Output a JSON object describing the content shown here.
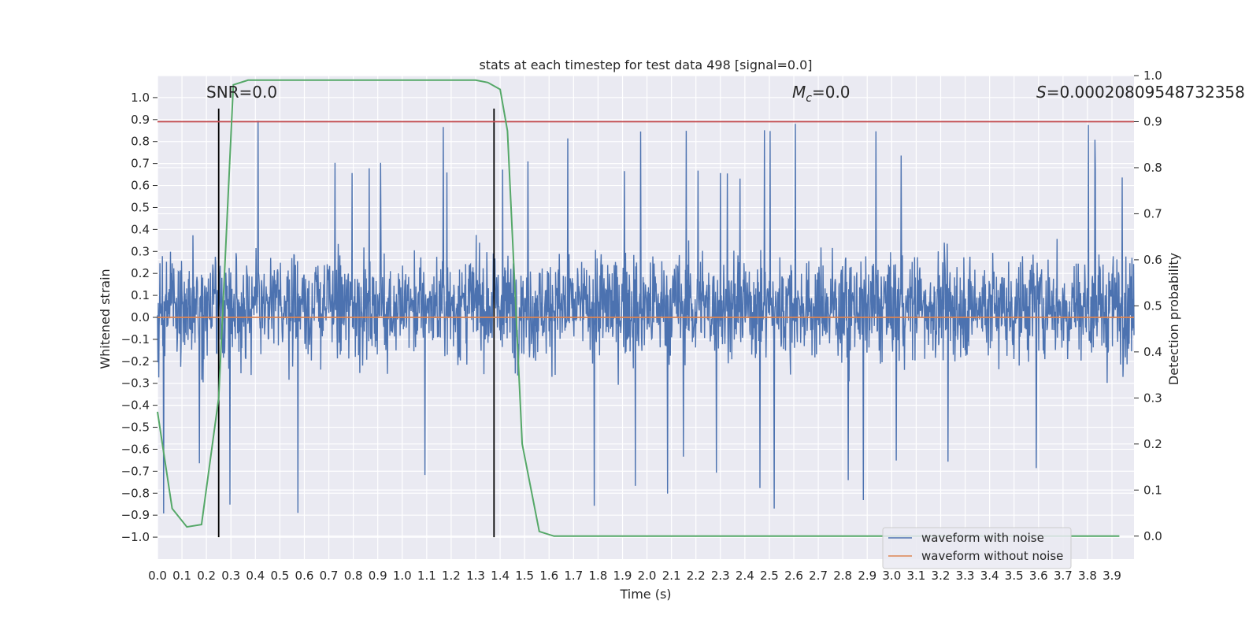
{
  "chart_data": {
    "type": "line",
    "title": "stats at each timestep for test data 498 [signal=0.0]",
    "xlabel": "Time (s)",
    "ylabel": "Whitened strain",
    "ylabel_right": "Detection probability",
    "xlim": [
      0.0,
      3.99
    ],
    "ylim": [
      -1.1,
      1.1
    ],
    "ylim_right": [
      -0.05,
      1.0
    ],
    "x_ticks": [
      "0.0",
      "0.1",
      "0.2",
      "0.3",
      "0.4",
      "0.5",
      "0.6",
      "0.7",
      "0.8",
      "0.9",
      "1.0",
      "1.1",
      "1.2",
      "1.3",
      "1.4",
      "1.5",
      "1.6",
      "1.7",
      "1.8",
      "1.9",
      "2.0",
      "2.1",
      "2.2",
      "2.3",
      "2.4",
      "2.5",
      "2.6",
      "2.7",
      "2.8",
      "2.9",
      "3.0",
      "3.1",
      "3.2",
      "3.3",
      "3.4",
      "3.5",
      "3.6",
      "3.7",
      "3.8",
      "3.9"
    ],
    "y_ticks": [
      "1.0",
      "0.9",
      "0.8",
      "0.7",
      "0.6",
      "0.5",
      "0.4",
      "0.3",
      "0.2",
      "0.1",
      "0.0",
      "−0.1",
      "−0.2",
      "−0.3",
      "−0.4",
      "−0.5",
      "−0.6",
      "−0.7",
      "−0.8",
      "−0.9",
      "−1.0"
    ],
    "y_ticks_right": [
      "1.0",
      "0.9",
      "0.8",
      "0.7",
      "0.6",
      "0.5",
      "0.4",
      "0.3",
      "0.2",
      "0.1",
      "0.0"
    ],
    "grid": true,
    "legend_position": "lower-right",
    "annotations": {
      "snr": "SNR=0.0",
      "mc_symbol": "M",
      "mc_subscript": "c",
      "mc_value": "=0.0",
      "s_symbol": "S",
      "s_value": "=0.00020809548732358"
    },
    "series": [
      {
        "name": "waveform with noise",
        "color": "#4c72b0",
        "style": "dense-noise",
        "y_range": [
          -1.0,
          0.95
        ],
        "typical_band": [
          -0.45,
          0.6
        ]
      },
      {
        "name": "waveform without noise",
        "color": "#dd8452",
        "x": [
          0.0,
          3.99
        ],
        "y": [
          0.0,
          0.0
        ]
      }
    ],
    "detection_probability": {
      "color": "#55a868",
      "axis": "right",
      "x": [
        0.0,
        0.06,
        0.12,
        0.18,
        0.25,
        0.31,
        0.37,
        0.43,
        0.49,
        0.55,
        0.61,
        0.8,
        1.0,
        1.2,
        1.3,
        1.35,
        1.4,
        1.43,
        1.49,
        1.56,
        1.62,
        1.8,
        2.5,
        3.0,
        3.5,
        3.93
      ],
      "y": [
        0.27,
        0.06,
        0.02,
        0.025,
        0.3,
        0.98,
        0.99,
        0.99,
        0.99,
        0.99,
        0.99,
        0.99,
        0.99,
        0.99,
        0.99,
        0.985,
        0.97,
        0.88,
        0.2,
        0.01,
        0.0,
        0.0,
        0.0,
        0.0,
        0.0,
        0.0
      ]
    },
    "threshold_line": {
      "color": "#c44e52",
      "axis": "right",
      "value": 0.9
    },
    "vertical_markers": {
      "color": "#000000",
      "x": [
        0.25,
        1.375
      ],
      "y_range": [
        -1.0,
        0.95
      ]
    }
  }
}
